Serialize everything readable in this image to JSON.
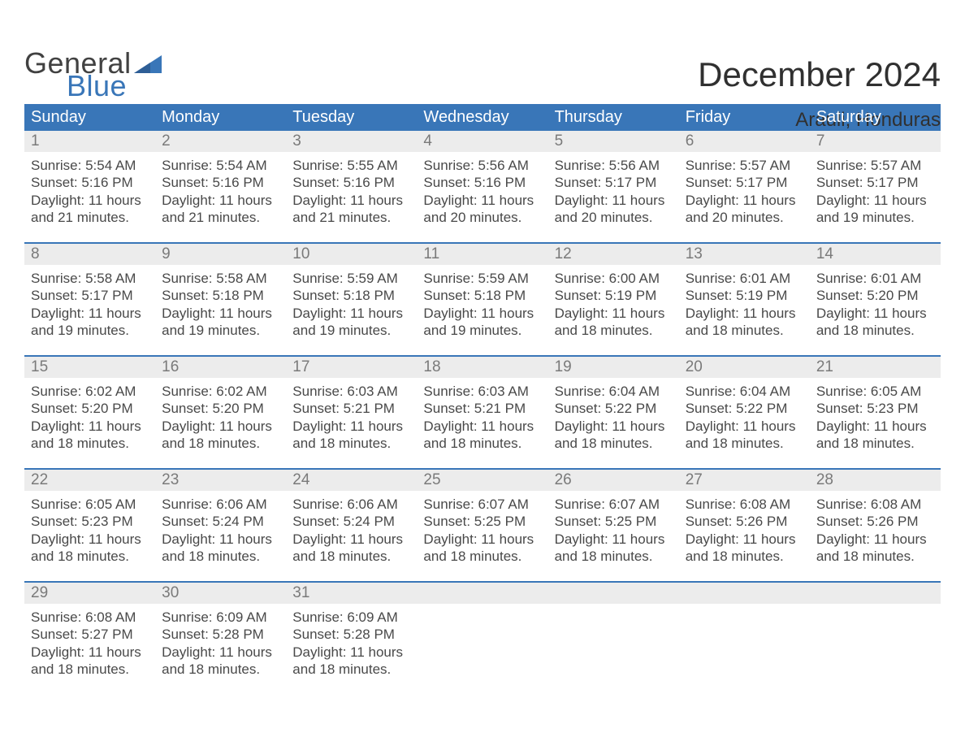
{
  "logo": {
    "word1": "General",
    "word2": "Blue"
  },
  "title": "December 2024",
  "location": "Arauli, Honduras",
  "colors": {
    "header_bg": "#3976b8",
    "header_text": "#ffffff",
    "daynum_bg": "#ececec",
    "daynum_text": "#7a7a7a",
    "body_text": "#494949",
    "rule": "#3976b8",
    "page_bg": "#ffffff"
  },
  "weekdays": [
    "Sunday",
    "Monday",
    "Tuesday",
    "Wednesday",
    "Thursday",
    "Friday",
    "Saturday"
  ],
  "weeks": [
    [
      {
        "n": "1",
        "sr": "5:54 AM",
        "ss": "5:16 PM",
        "dl": "11 hours and 21 minutes."
      },
      {
        "n": "2",
        "sr": "5:54 AM",
        "ss": "5:16 PM",
        "dl": "11 hours and 21 minutes."
      },
      {
        "n": "3",
        "sr": "5:55 AM",
        "ss": "5:16 PM",
        "dl": "11 hours and 21 minutes."
      },
      {
        "n": "4",
        "sr": "5:56 AM",
        "ss": "5:16 PM",
        "dl": "11 hours and 20 minutes."
      },
      {
        "n": "5",
        "sr": "5:56 AM",
        "ss": "5:17 PM",
        "dl": "11 hours and 20 minutes."
      },
      {
        "n": "6",
        "sr": "5:57 AM",
        "ss": "5:17 PM",
        "dl": "11 hours and 20 minutes."
      },
      {
        "n": "7",
        "sr": "5:57 AM",
        "ss": "5:17 PM",
        "dl": "11 hours and 19 minutes."
      }
    ],
    [
      {
        "n": "8",
        "sr": "5:58 AM",
        "ss": "5:17 PM",
        "dl": "11 hours and 19 minutes."
      },
      {
        "n": "9",
        "sr": "5:58 AM",
        "ss": "5:18 PM",
        "dl": "11 hours and 19 minutes."
      },
      {
        "n": "10",
        "sr": "5:59 AM",
        "ss": "5:18 PM",
        "dl": "11 hours and 19 minutes."
      },
      {
        "n": "11",
        "sr": "5:59 AM",
        "ss": "5:18 PM",
        "dl": "11 hours and 19 minutes."
      },
      {
        "n": "12",
        "sr": "6:00 AM",
        "ss": "5:19 PM",
        "dl": "11 hours and 18 minutes."
      },
      {
        "n": "13",
        "sr": "6:01 AM",
        "ss": "5:19 PM",
        "dl": "11 hours and 18 minutes."
      },
      {
        "n": "14",
        "sr": "6:01 AM",
        "ss": "5:20 PM",
        "dl": "11 hours and 18 minutes."
      }
    ],
    [
      {
        "n": "15",
        "sr": "6:02 AM",
        "ss": "5:20 PM",
        "dl": "11 hours and 18 minutes."
      },
      {
        "n": "16",
        "sr": "6:02 AM",
        "ss": "5:20 PM",
        "dl": "11 hours and 18 minutes."
      },
      {
        "n": "17",
        "sr": "6:03 AM",
        "ss": "5:21 PM",
        "dl": "11 hours and 18 minutes."
      },
      {
        "n": "18",
        "sr": "6:03 AM",
        "ss": "5:21 PM",
        "dl": "11 hours and 18 minutes."
      },
      {
        "n": "19",
        "sr": "6:04 AM",
        "ss": "5:22 PM",
        "dl": "11 hours and 18 minutes."
      },
      {
        "n": "20",
        "sr": "6:04 AM",
        "ss": "5:22 PM",
        "dl": "11 hours and 18 minutes."
      },
      {
        "n": "21",
        "sr": "6:05 AM",
        "ss": "5:23 PM",
        "dl": "11 hours and 18 minutes."
      }
    ],
    [
      {
        "n": "22",
        "sr": "6:05 AM",
        "ss": "5:23 PM",
        "dl": "11 hours and 18 minutes."
      },
      {
        "n": "23",
        "sr": "6:06 AM",
        "ss": "5:24 PM",
        "dl": "11 hours and 18 minutes."
      },
      {
        "n": "24",
        "sr": "6:06 AM",
        "ss": "5:24 PM",
        "dl": "11 hours and 18 minutes."
      },
      {
        "n": "25",
        "sr": "6:07 AM",
        "ss": "5:25 PM",
        "dl": "11 hours and 18 minutes."
      },
      {
        "n": "26",
        "sr": "6:07 AM",
        "ss": "5:25 PM",
        "dl": "11 hours and 18 minutes."
      },
      {
        "n": "27",
        "sr": "6:08 AM",
        "ss": "5:26 PM",
        "dl": "11 hours and 18 minutes."
      },
      {
        "n": "28",
        "sr": "6:08 AM",
        "ss": "5:26 PM",
        "dl": "11 hours and 18 minutes."
      }
    ],
    [
      {
        "n": "29",
        "sr": "6:08 AM",
        "ss": "5:27 PM",
        "dl": "11 hours and 18 minutes."
      },
      {
        "n": "30",
        "sr": "6:09 AM",
        "ss": "5:28 PM",
        "dl": "11 hours and 18 minutes."
      },
      {
        "n": "31",
        "sr": "6:09 AM",
        "ss": "5:28 PM",
        "dl": "11 hours and 18 minutes."
      },
      null,
      null,
      null,
      null
    ]
  ],
  "labels": {
    "sunrise": "Sunrise: ",
    "sunset": "Sunset: ",
    "daylight_lead": "Daylight: "
  }
}
